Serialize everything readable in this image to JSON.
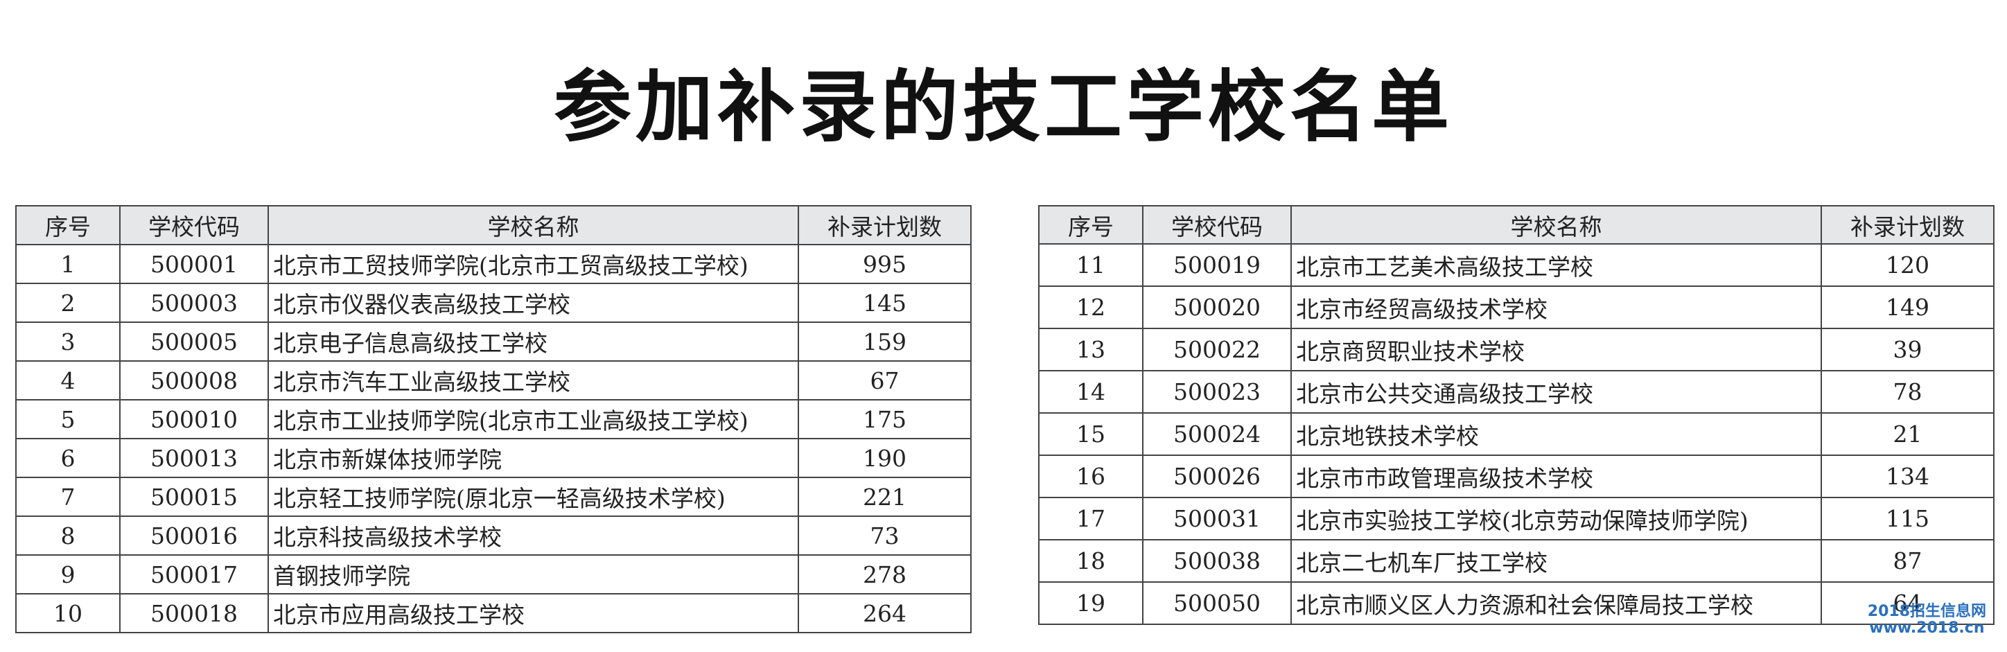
{
  "title": "参加补录的技工学校名单",
  "tables": [
    {
      "headers": [
        "序号",
        "学校代码",
        "学校名称",
        "补录计划数"
      ],
      "rows": [
        [
          "1",
          "500001",
          "北京市工贸技师学院(北京市工贸高级技工学校)",
          "995"
        ],
        [
          "2",
          "500003",
          "北京市仪器仪表高级技工学校",
          "145"
        ],
        [
          "3",
          "500005",
          "北京电子信息高级技工学校",
          "159"
        ],
        [
          "4",
          "500008",
          "北京市汽车工业高级技工学校",
          "67"
        ],
        [
          "5",
          "500010",
          "北京市工业技师学院(北京市工业高级技工学校)",
          "175"
        ],
        [
          "6",
          "500013",
          "北京市新媒体技师学院",
          "190"
        ],
        [
          "7",
          "500015",
          "北京轻工技师学院(原北京一轻高级技术学校)",
          "221"
        ],
        [
          "8",
          "500016",
          "北京科技高级技术学校",
          "73"
        ],
        [
          "9",
          "500017",
          "首钢技师学院",
          "278"
        ],
        [
          "10",
          "500018",
          "北京市应用高级技工学校",
          "264"
        ]
      ]
    },
    {
      "headers": [
        "序号",
        "学校代码",
        "学校名称",
        "补录计划数"
      ],
      "rows": [
        [
          "11",
          "500019",
          "北京市工艺美术高级技工学校",
          "120"
        ],
        [
          "12",
          "500020",
          "北京市经贸高级技术学校",
          "149"
        ],
        [
          "13",
          "500022",
          "北京商贸职业技术学校",
          "39"
        ],
        [
          "14",
          "500023",
          "北京市公共交通高级技工学校",
          "78"
        ],
        [
          "15",
          "500024",
          "北京地铁技术学校",
          "21"
        ],
        [
          "16",
          "500026",
          "北京市市政管理高级技术学校",
          "134"
        ],
        [
          "17",
          "500031",
          "北京市实验技工学校(北京劳动保障技师学院)",
          "115"
        ],
        [
          "18",
          "500038",
          "北京二七机车厂技工学校",
          "87"
        ],
        [
          "19",
          "500050",
          "北京市顺义区人力资源和社会保障局技工学校",
          "64"
        ]
      ]
    }
  ],
  "watermark": [
    "2018招生信息网",
    "www.2018.cn"
  ]
}
